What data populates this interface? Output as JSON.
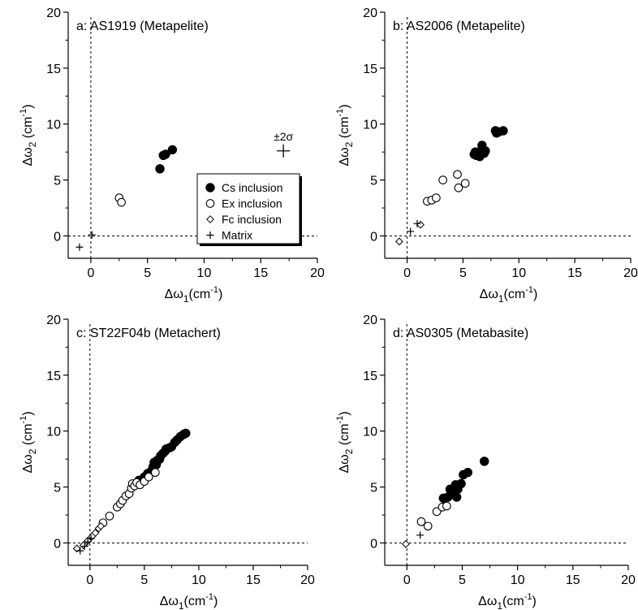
{
  "legend": {
    "items": [
      {
        "marker": "filled-circle",
        "label": "Cs inclusion"
      },
      {
        "marker": "open-circle",
        "label": "Ex inclusion"
      },
      {
        "marker": "open-diamond",
        "label": "Fc inclusion"
      },
      {
        "marker": "plus",
        "label": "Matrix"
      }
    ]
  },
  "error_bar_label": "±2σ",
  "chart_data": [
    {
      "type": "scatter",
      "title": "a: AS1919 (Metapelite)",
      "xlabel": "Δω1(cm-1)",
      "ylabel": "Δω2 (cm-1)",
      "xlim": [
        -2,
        20
      ],
      "ylim": [
        -2,
        20
      ],
      "xticks": [
        0,
        5,
        10,
        15,
        20
      ],
      "yticks": [
        0,
        5,
        10,
        15,
        20
      ],
      "ref_lines": {
        "x": 0,
        "y": 0,
        "style": "dashed"
      },
      "legend_shown": true,
      "legend_placement": "right-middle",
      "error_bar": {
        "x": 17,
        "y": 7.6,
        "label": "±2σ"
      },
      "series": [
        {
          "name": "Cs inclusion",
          "marker": "filled-circle",
          "points": [
            [
              6.1,
              6.0
            ],
            [
              6.4,
              7.2
            ],
            [
              6.6,
              7.3
            ],
            [
              7.2,
              7.7
            ]
          ]
        },
        {
          "name": "Ex inclusion",
          "marker": "open-circle",
          "points": [
            [
              2.5,
              3.4
            ],
            [
              2.7,
              3.0
            ]
          ]
        },
        {
          "name": "Fc inclusion",
          "marker": "open-diamond",
          "points": []
        },
        {
          "name": "Matrix",
          "marker": "plus",
          "points": [
            [
              -1.0,
              -1.0
            ],
            [
              0.1,
              0.1
            ]
          ]
        }
      ]
    },
    {
      "type": "scatter",
      "title": "b: AS2006 (Metapelite)",
      "xlabel": "Δω1(cm-1)",
      "ylabel": "Δω2 (cm-1)",
      "xlim": [
        -2,
        20
      ],
      "ylim": [
        -2,
        20
      ],
      "xticks": [
        0,
        5,
        10,
        15,
        20
      ],
      "yticks": [
        0,
        5,
        10,
        15,
        20
      ],
      "ref_lines": {
        "x": 0,
        "y": 0,
        "style": "dashed"
      },
      "series": [
        {
          "name": "Cs inclusion",
          "marker": "filled-circle",
          "points": [
            [
              6.0,
              7.3
            ],
            [
              6.1,
              7.5
            ],
            [
              6.2,
              7.2
            ],
            [
              6.4,
              7.4
            ],
            [
              6.5,
              7.1
            ],
            [
              6.6,
              7.6
            ],
            [
              6.7,
              8.1
            ],
            [
              6.9,
              7.4
            ],
            [
              7.0,
              7.6
            ],
            [
              7.9,
              9.4
            ],
            [
              8.0,
              9.2
            ],
            [
              8.2,
              9.3
            ],
            [
              8.6,
              9.4
            ]
          ]
        },
        {
          "name": "Ex inclusion",
          "marker": "open-circle",
          "points": [
            [
              1.8,
              3.1
            ],
            [
              2.2,
              3.2
            ],
            [
              2.6,
              3.4
            ],
            [
              3.2,
              5.0
            ],
            [
              4.5,
              5.5
            ],
            [
              4.6,
              4.3
            ],
            [
              5.2,
              4.7
            ]
          ]
        },
        {
          "name": "Fc inclusion",
          "marker": "open-diamond",
          "points": [
            [
              -0.7,
              -0.5
            ],
            [
              1.2,
              1.0
            ]
          ]
        },
        {
          "name": "Matrix",
          "marker": "plus",
          "points": [
            [
              0.3,
              0.4
            ],
            [
              0.9,
              1.1
            ]
          ]
        }
      ]
    },
    {
      "type": "scatter",
      "title": "c: ST22F04b (Metachert)",
      "xlabel": "Δω1(cm-1)",
      "ylabel": "Δω2 (cm-1)",
      "xlim": [
        -2,
        20
      ],
      "ylim": [
        -2,
        20
      ],
      "xticks": [
        0,
        5,
        10,
        15,
        20
      ],
      "yticks": [
        0,
        5,
        10,
        15,
        20
      ],
      "ref_lines": {
        "x": 0,
        "y": 0,
        "style": "dashed"
      },
      "series": [
        {
          "name": "Cs inclusion",
          "marker": "filled-circle",
          "points": [
            [
              4.5,
              5.6
            ],
            [
              5.0,
              5.9
            ],
            [
              5.3,
              6.2
            ],
            [
              5.6,
              6.4
            ],
            [
              5.8,
              6.8
            ],
            [
              5.9,
              7.2
            ],
            [
              6.1,
              7.0
            ],
            [
              6.2,
              7.4
            ],
            [
              6.4,
              7.5
            ],
            [
              6.5,
              7.8
            ],
            [
              6.7,
              8.0
            ],
            [
              6.9,
              8.2
            ],
            [
              7.0,
              8.4
            ],
            [
              7.3,
              8.5
            ],
            [
              7.5,
              8.6
            ],
            [
              7.8,
              9.0
            ],
            [
              8.0,
              9.2
            ],
            [
              8.3,
              9.5
            ],
            [
              8.6,
              9.7
            ],
            [
              8.8,
              9.8
            ]
          ]
        },
        {
          "name": "Ex inclusion",
          "marker": "open-circle",
          "points": [
            [
              1.2,
              1.8
            ],
            [
              1.8,
              2.4
            ],
            [
              2.5,
              3.2
            ],
            [
              2.8,
              3.5
            ],
            [
              3.0,
              3.8
            ],
            [
              3.3,
              4.2
            ],
            [
              3.6,
              4.4
            ],
            [
              3.8,
              4.9
            ],
            [
              3.9,
              5.3
            ],
            [
              4.1,
              5.1
            ],
            [
              4.3,
              5.4
            ],
            [
              4.6,
              5.2
            ],
            [
              5.0,
              5.5
            ],
            [
              5.4,
              5.9
            ],
            [
              6.0,
              6.3
            ]
          ]
        },
        {
          "name": "Fc inclusion",
          "marker": "open-diamond",
          "points": [
            [
              -1.2,
              -0.5
            ],
            [
              -0.6,
              -0.2
            ],
            [
              -0.2,
              0.2
            ],
            [
              0.2,
              0.6
            ],
            [
              0.5,
              0.9
            ],
            [
              0.8,
              1.3
            ],
            [
              1.0,
              1.5
            ]
          ]
        },
        {
          "name": "Matrix",
          "marker": "plus",
          "points": [
            [
              -0.9,
              -0.7
            ],
            [
              -0.5,
              -0.3
            ],
            [
              -0.2,
              0.1
            ],
            [
              0.1,
              0.4
            ]
          ]
        }
      ]
    },
    {
      "type": "scatter",
      "title": "d: AS0305 (Metabasite)",
      "xlabel": "Δω1(cm-1)",
      "ylabel": "Δω2 (cm-1)",
      "xlim": [
        -2,
        20
      ],
      "ylim": [
        -2,
        20
      ],
      "xticks": [
        0,
        5,
        10,
        15,
        20
      ],
      "yticks": [
        0,
        5,
        10,
        15,
        20
      ],
      "ref_lines": {
        "x": 0,
        "y": 0,
        "style": "dashed"
      },
      "series": [
        {
          "name": "Cs inclusion",
          "marker": "filled-circle",
          "points": [
            [
              3.3,
              4.0
            ],
            [
              3.7,
              4.1
            ],
            [
              3.9,
              4.8
            ],
            [
              4.2,
              4.5
            ],
            [
              4.4,
              5.2
            ],
            [
              4.5,
              4.1
            ],
            [
              4.6,
              4.8
            ],
            [
              4.9,
              5.3
            ],
            [
              5.1,
              6.1
            ],
            [
              5.5,
              6.3
            ],
            [
              7.0,
              7.3
            ]
          ]
        },
        {
          "name": "Ex inclusion",
          "marker": "open-circle",
          "points": [
            [
              1.3,
              1.9
            ],
            [
              1.9,
              1.5
            ],
            [
              2.7,
              2.8
            ],
            [
              3.2,
              3.2
            ],
            [
              3.6,
              3.3
            ]
          ]
        },
        {
          "name": "Fc inclusion",
          "marker": "open-diamond",
          "points": [
            [
              -0.1,
              -0.1
            ]
          ]
        },
        {
          "name": "Matrix",
          "marker": "plus",
          "points": [
            [
              1.2,
              0.7
            ]
          ]
        }
      ]
    }
  ]
}
